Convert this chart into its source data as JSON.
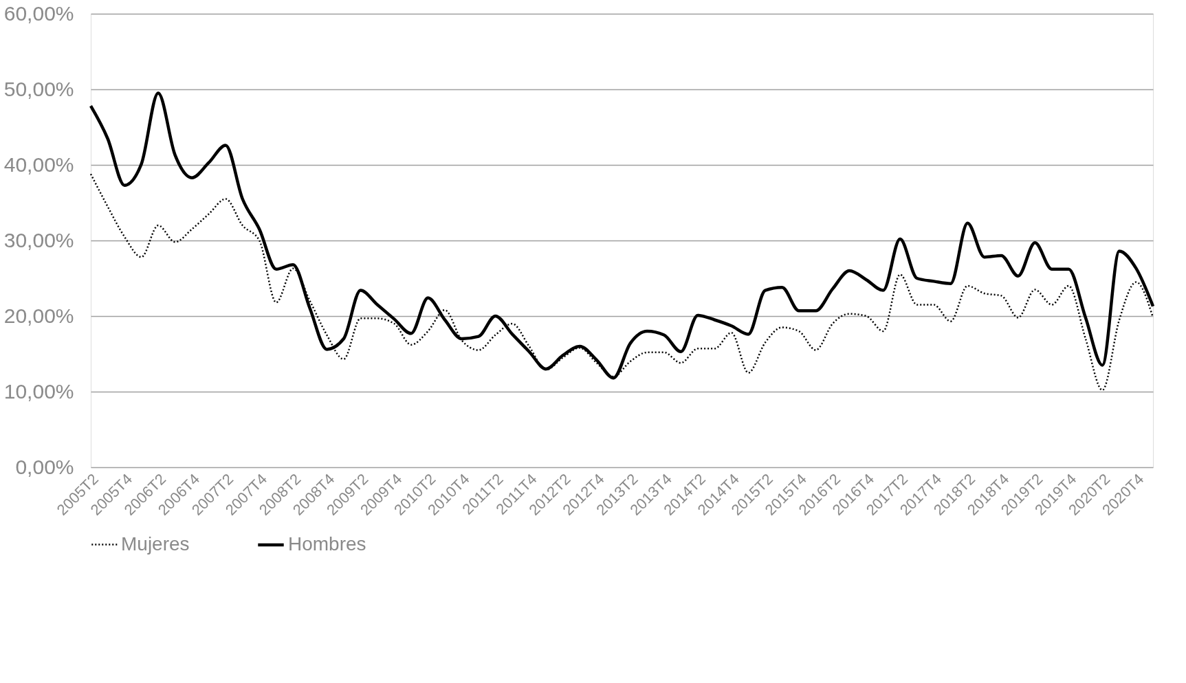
{
  "chart_data": {
    "type": "line",
    "categories": [
      "2005T2",
      null,
      "2005T4",
      null,
      "2006T2",
      null,
      "2006T4",
      null,
      "2007T2",
      null,
      "2007T4",
      null,
      "2008T2",
      null,
      "2008T4",
      null,
      "2009T2",
      null,
      "2009T4",
      null,
      "2010T2",
      null,
      "2010T4",
      null,
      "2011T2",
      null,
      "2011T4",
      null,
      "2012T2",
      null,
      "2012T4",
      null,
      "2013T2",
      null,
      "2013T4",
      null,
      "2014T2",
      null,
      "2014T4",
      null,
      "2015T2",
      null,
      "2015T4",
      null,
      "2016T2",
      null,
      "2016T4",
      null,
      "2017T2",
      null,
      "2017T4",
      null,
      "2018T2",
      null,
      "2018T4",
      null,
      "2019T2",
      null,
      "2019T4",
      null,
      "2020T2",
      null,
      "2020T4",
      null
    ],
    "series": [
      {
        "name": "Mujeres",
        "color": "#000000",
        "line_style": "dotted",
        "values": [
          38.8,
          34.5,
          30.5,
          27.8,
          32.0,
          29.8,
          31.5,
          33.5,
          35.5,
          32.0,
          30.0,
          21.8,
          26.3,
          22.0,
          17.5,
          14.3,
          19.7,
          19.7,
          19.0,
          16.2,
          18.0,
          20.8,
          16.8,
          15.5,
          17.5,
          19.0,
          16.0,
          12.9,
          14.5,
          15.8,
          13.8,
          12.0,
          14.0,
          15.2,
          15.2,
          13.8,
          15.7,
          15.7,
          17.8,
          12.5,
          16.5,
          18.5,
          18.0,
          15.5,
          19.0,
          20.3,
          20.0,
          18.0,
          25.5,
          21.5,
          21.5,
          19.3,
          24.0,
          23.0,
          22.7,
          19.8,
          23.5,
          21.5,
          24.0,
          17.0,
          10.2,
          19.5,
          24.5,
          19.8
        ]
      },
      {
        "name": "Hombres",
        "color": "#000000",
        "line_style": "solid",
        "values": [
          47.8,
          43.5,
          37.3,
          40.1,
          49.5,
          41.3,
          38.3,
          40.3,
          42.6,
          35.5,
          31.5,
          26.2,
          26.8,
          21.0,
          15.6,
          17.0,
          23.4,
          21.5,
          19.6,
          17.7,
          22.4,
          19.5,
          17.0,
          17.3,
          20.0,
          17.6,
          15.3,
          13.0,
          14.8,
          16.0,
          14.2,
          11.8,
          16.4,
          18.0,
          17.5,
          15.3,
          20.1,
          19.5,
          18.7,
          17.6,
          23.4,
          23.8,
          20.7,
          20.7,
          23.6,
          26.0,
          24.8,
          23.4,
          30.2,
          25.0,
          24.6,
          24.3,
          32.3,
          27.8,
          28.0,
          25.3,
          29.7,
          26.2,
          26.2,
          19.8,
          13.5,
          28.6,
          26.3,
          21.3
        ]
      }
    ],
    "ylim": [
      0,
      60
    ],
    "yticks": [
      {
        "value": 0,
        "label": "0,00%"
      },
      {
        "value": 10,
        "label": "10,00%"
      },
      {
        "value": 20,
        "label": "20,00%"
      },
      {
        "value": 30,
        "label": "30,00%"
      },
      {
        "value": 40,
        "label": "40,00%"
      },
      {
        "value": 50,
        "label": "50,00%"
      },
      {
        "value": 60,
        "label": "60,00%"
      }
    ],
    "grid": "y",
    "legend": "bottom",
    "marker": "none"
  }
}
